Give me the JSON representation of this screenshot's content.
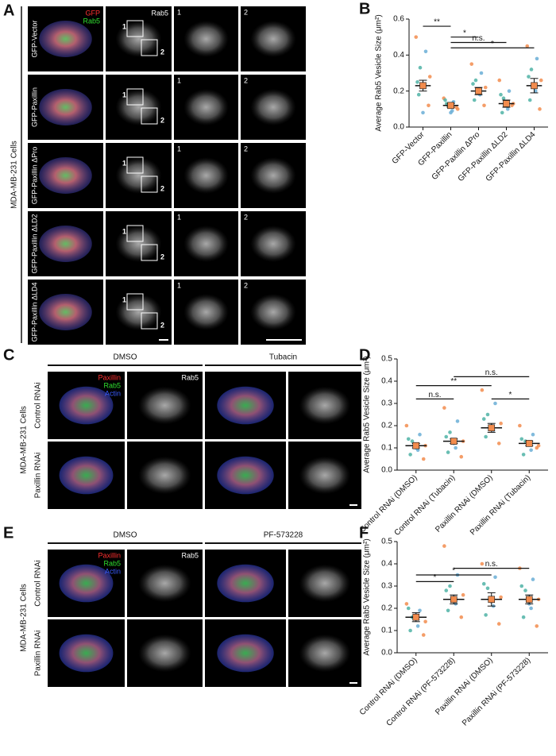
{
  "panel_a": {
    "label": "A",
    "side_label": "MDA-MB-231 Cells",
    "rows": [
      "GFP-Vector",
      "GFP-Paxillin",
      "GFP-Paxillin ΔPro",
      "GFP-Paxillin ΔLD2",
      "GFP-Paxillin ΔLD4"
    ],
    "legend": [
      "GFP",
      "Rab5"
    ],
    "channel_label": "Rab5",
    "inset_labels": [
      "1",
      "2"
    ]
  },
  "panel_c": {
    "label": "C",
    "side_label": "MDA-MB-231 Cells",
    "conditions": [
      "DMSO",
      "Tubacin"
    ],
    "rows": [
      "Control RNAi",
      "Paxillin RNAi"
    ],
    "legend": [
      "Paxillin",
      "Rab5",
      "Actin"
    ],
    "channel_label": "Rab5"
  },
  "panel_e": {
    "label": "E",
    "side_label": "MDA-MB-231 Cells",
    "conditions": [
      "DMSO",
      "PF-573228"
    ],
    "rows": [
      "Control RNAi",
      "Paxillin RNAi"
    ],
    "legend": [
      "Paxillin",
      "Rab5",
      "Actin"
    ],
    "channel_label": "Rab5"
  },
  "chart_data": [
    {
      "type": "dot",
      "panel": "B",
      "y_label": "Average Rab5 Vesicle Size (μm²)",
      "categories": [
        "GFP-Vector",
        "GFP-Paxillin",
        "GFP-Paxillin ΔPro",
        "GFP-Paxillin ΔLD2",
        "GFP-Paxillin ΔLD4"
      ],
      "values": [
        0.23,
        0.12,
        0.2,
        0.13,
        0.23
      ],
      "errors": [
        0.03,
        0.01,
        0.02,
        0.02,
        0.04
      ],
      "points": [
        [
          0.5,
          0.42,
          0.33,
          0.28,
          0.22,
          0.18,
          0.12,
          0.08,
          0.25
        ],
        [
          0.16,
          0.14,
          0.12,
          0.1,
          0.09,
          0.13,
          0.11,
          0.08,
          0.15
        ],
        [
          0.35,
          0.3,
          0.26,
          0.22,
          0.18,
          0.15,
          0.12,
          0.2,
          0.24
        ],
        [
          0.26,
          0.2,
          0.16,
          0.13,
          0.1,
          0.08,
          0.12,
          0.14,
          0.18
        ],
        [
          0.45,
          0.38,
          0.32,
          0.26,
          0.2,
          0.15,
          0.1,
          0.22,
          0.28
        ]
      ],
      "replicate_colors": [
        "#f28c4e",
        "#6aaed6",
        "#4fb3a6"
      ],
      "ylim": [
        0,
        0.6
      ],
      "yticks": [
        {
          "value": 0,
          "label": "0.0"
        },
        0.2,
        0.4,
        0.6
      ],
      "significance": [
        {
          "from": 0,
          "to": 1,
          "label": "**",
          "y": 0.56
        },
        {
          "from": 1,
          "to": 2,
          "label": "*",
          "y": 0.5
        },
        {
          "from": 1,
          "to": 3,
          "label": "n.s.",
          "y": 0.47
        },
        {
          "from": 1,
          "to": 4,
          "label": "*",
          "y": 0.44
        }
      ]
    },
    {
      "type": "dot",
      "panel": "D",
      "y_label": "Average Rab5 Vesicle Size (μm²)",
      "categories": [
        "Control RNAi (DMSO)",
        "Control RNAi (Tubacin)",
        "Paxillin RNAi (DMSO)",
        "Paxillin RNAi (Tubacin)"
      ],
      "values": [
        0.11,
        0.13,
        0.19,
        0.12
      ],
      "errors": [
        0.01,
        0.01,
        0.02,
        0.01
      ],
      "points": [
        [
          0.2,
          0.16,
          0.13,
          0.11,
          0.09,
          0.07,
          0.05,
          0.1,
          0.14
        ],
        [
          0.28,
          0.22,
          0.17,
          0.13,
          0.1,
          0.08,
          0.06,
          0.12,
          0.15
        ],
        [
          0.36,
          0.3,
          0.25,
          0.21,
          0.18,
          0.15,
          0.12,
          0.2,
          0.23
        ],
        [
          0.2,
          0.16,
          0.13,
          0.11,
          0.09,
          0.07,
          0.1,
          0.12,
          0.14
        ]
      ],
      "replicate_colors": [
        "#f28c4e",
        "#6aaed6",
        "#4fb3a6"
      ],
      "ylim": [
        0,
        0.5
      ],
      "yticks": [
        {
          "value": 0,
          "label": "0.0"
        },
        0.1,
        0.2,
        0.3,
        0.4,
        0.5
      ],
      "significance": [
        {
          "from": 0,
          "to": 1,
          "label": "n.s.",
          "y": 0.32
        },
        {
          "from": 0,
          "to": 2,
          "label": "**",
          "y": 0.38
        },
        {
          "from": 1,
          "to": 3,
          "label": "n.s.",
          "y": 0.42
        },
        {
          "from": 2,
          "to": 3,
          "label": "*",
          "y": 0.32
        }
      ]
    },
    {
      "type": "dot",
      "panel": "F",
      "y_label": "Average Rab5 Vesicle Size (μm²)",
      "categories": [
        "Control RNAi (DMSO)",
        "Control RNAi (PF-573228)",
        "Paxillin RNAi (DMSO)",
        "Paxillin RNAi (PF-573228)"
      ],
      "values": [
        0.16,
        0.24,
        0.24,
        0.24
      ],
      "errors": [
        0.02,
        0.02,
        0.03,
        0.02
      ],
      "points": [
        [
          0.22,
          0.19,
          0.16,
          0.14,
          0.12,
          0.1,
          0.08,
          0.17,
          0.2
        ],
        [
          0.48,
          0.35,
          0.3,
          0.26,
          0.22,
          0.19,
          0.16,
          0.24,
          0.28
        ],
        [
          0.4,
          0.34,
          0.29,
          0.25,
          0.21,
          0.17,
          0.13,
          0.23,
          0.31
        ],
        [
          0.38,
          0.33,
          0.28,
          0.24,
          0.2,
          0.16,
          0.12,
          0.22,
          0.3
        ]
      ],
      "replicate_colors": [
        "#f28c4e",
        "#6aaed6",
        "#4fb3a6"
      ],
      "ylim": [
        0,
        0.5
      ],
      "yticks": [
        {
          "value": 0,
          "label": "0.0"
        },
        0.1,
        0.2,
        0.3,
        0.4,
        0.5
      ],
      "significance": [
        {
          "from": 0,
          "to": 1,
          "label": "*",
          "y": 0.32
        },
        {
          "from": 0,
          "to": 2,
          "label": "*",
          "y": 0.35
        },
        {
          "from": 1,
          "to": 3,
          "label": "n.s.",
          "y": 0.38
        }
      ]
    }
  ]
}
